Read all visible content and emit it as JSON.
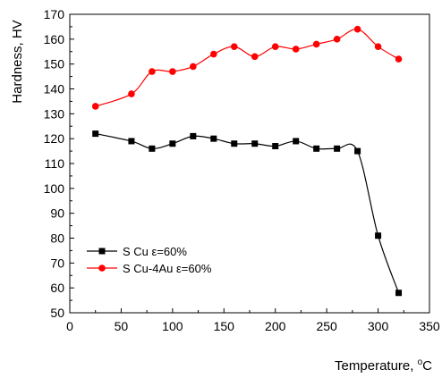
{
  "chart_data": {
    "type": "line",
    "title": "",
    "xlabel": "Temperature, °C",
    "ylabel": "Hardness, HV",
    "xlim": [
      0,
      350
    ],
    "ylim": [
      50,
      170
    ],
    "xticks": [
      0,
      50,
      100,
      150,
      200,
      250,
      300,
      350
    ],
    "yticks": [
      50,
      60,
      70,
      80,
      90,
      100,
      110,
      120,
      130,
      140,
      150,
      160,
      170
    ],
    "grid": false,
    "legend_position": "bottom-left",
    "series": [
      {
        "name": "S Cu ε=60%",
        "color": "#000000",
        "marker": "square",
        "x": [
          25,
          60,
          80,
          100,
          120,
          140,
          160,
          180,
          200,
          220,
          240,
          260,
          280,
          300,
          320
        ],
        "y": [
          122,
          119,
          116,
          118,
          121,
          120,
          118,
          118,
          117,
          119,
          116,
          116,
          115,
          81,
          58
        ]
      },
      {
        "name": "S Cu-4Au ε=60%",
        "color": "#ff0000",
        "marker": "circle",
        "x": [
          25,
          60,
          80,
          100,
          120,
          140,
          160,
          180,
          200,
          220,
          240,
          260,
          280,
          300,
          320
        ],
        "y": [
          133,
          138,
          147,
          147,
          149,
          154,
          157,
          153,
          157,
          156,
          158,
          160,
          164,
          157,
          152
        ]
      }
    ]
  }
}
